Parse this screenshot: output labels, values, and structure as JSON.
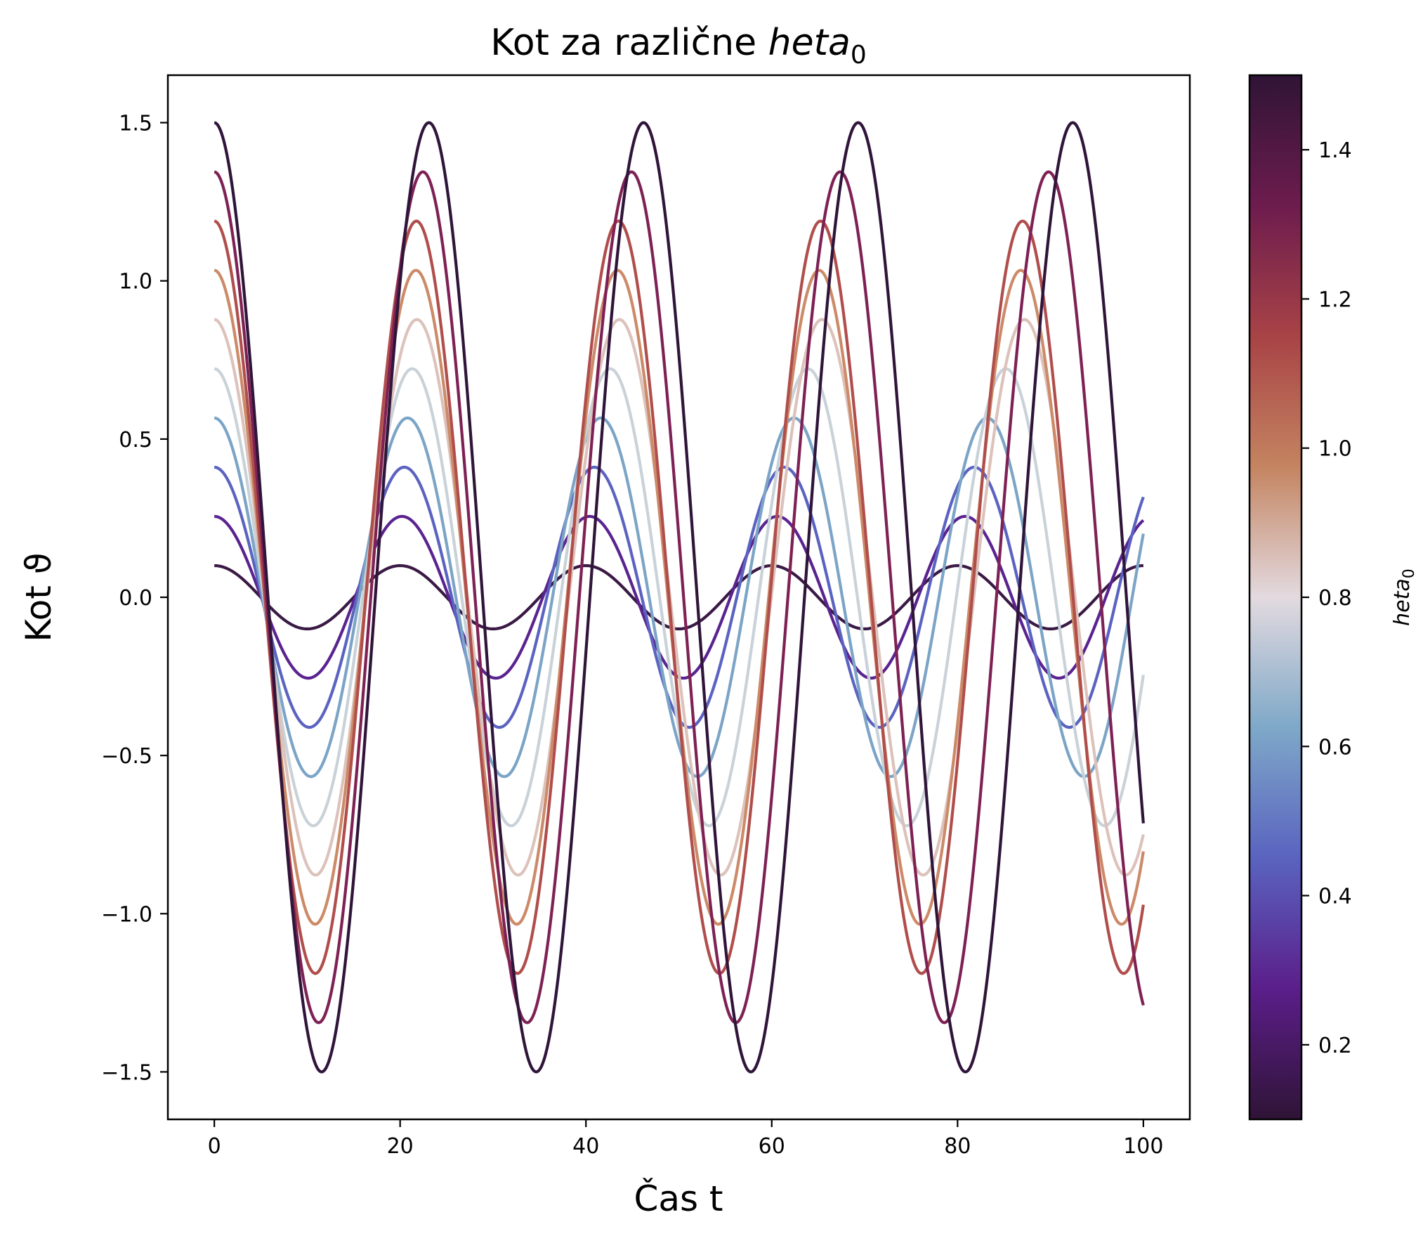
{
  "chart_data": {
    "type": "line",
    "title": "Kot za različne ",
    "title_math": "heta",
    "title_sub": "0",
    "xlabel": "Čas t",
    "ylabel": "Kot ϑ",
    "xlim": [
      -5,
      105
    ],
    "ylim": [
      -1.65,
      1.65
    ],
    "xticks": [
      0,
      20,
      40,
      60,
      80,
      100
    ],
    "xtick_labels": [
      "0",
      "20",
      "40",
      "60",
      "80",
      "100"
    ],
    "yticks": [
      -1.5,
      -1.0,
      -0.5,
      0.0,
      0.5,
      1.0,
      1.5
    ],
    "ytick_labels": [
      "−1.5",
      "−1.0",
      "−0.5",
      "0.0",
      "0.5",
      "1.0",
      "1.5"
    ],
    "x_range": [
      0,
      100
    ],
    "colorbar": {
      "label_math": "heta",
      "label_sub": "0",
      "range": [
        0.1,
        1.5
      ],
      "ticks": [
        0.2,
        0.4,
        0.6,
        0.8,
        1.0,
        1.2,
        1.4
      ],
      "tick_labels": [
        "0.2",
        "0.4",
        "0.6",
        "0.8",
        "1.0",
        "1.2",
        "1.4"
      ],
      "colormap": "twilight_shifted",
      "stops": [
        "#2f1436",
        "#5b1e8a",
        "#5a63bf",
        "#7ea8c8",
        "#e3dadf",
        "#c48461",
        "#a84346",
        "#6d1c4e",
        "#2f1436"
      ]
    },
    "grid": false,
    "series": [
      {
        "theta0": 0.1,
        "amplitude": 0.1,
        "period": 20.0,
        "color": "#3a1a45"
      },
      {
        "theta0": 0.2556,
        "amplitude": 0.2556,
        "period": 20.2,
        "color": "#5a2390"
      },
      {
        "theta0": 0.4111,
        "amplitude": 0.4111,
        "period": 20.45,
        "color": "#5b63c1"
      },
      {
        "theta0": 0.5667,
        "amplitude": 0.5667,
        "period": 20.8,
        "color": "#7ba4c6"
      },
      {
        "theta0": 0.7222,
        "amplitude": 0.7222,
        "period": 21.3,
        "color": "#c9d2d9"
      },
      {
        "theta0": 0.8778,
        "amplitude": 0.8778,
        "period": 21.8,
        "color": "#dcc2bb"
      },
      {
        "theta0": 1.0333,
        "amplitude": 1.0333,
        "period": 21.7,
        "color": "#cc8a68"
      },
      {
        "theta0": 1.1889,
        "amplitude": 1.1889,
        "period": 21.75,
        "color": "#b04e4c"
      },
      {
        "theta0": 1.3444,
        "amplitude": 1.3444,
        "period": 22.45,
        "color": "#7e2154"
      },
      {
        "theta0": 1.5,
        "amplitude": 1.5,
        "period": 23.1,
        "color": "#30153a"
      }
    ]
  }
}
